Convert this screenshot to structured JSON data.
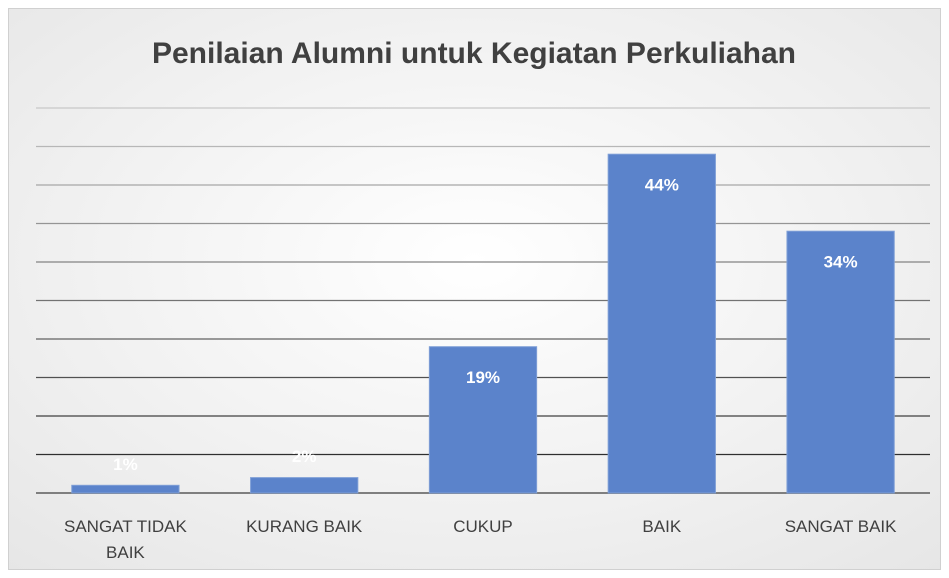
{
  "chart_data": {
    "type": "bar",
    "title": "Penilaian Alumni untuk Kegiatan Perkuliahan",
    "categories": [
      "SANGAT TIDAK BAIK",
      "KURANG BAIK",
      "CUKUP",
      "BAIK",
      "SANGAT BAIK"
    ],
    "values": [
      1,
      2,
      19,
      44,
      34
    ],
    "value_labels": [
      "1%",
      "2%",
      "19%",
      "44%",
      "34%"
    ],
    "color": "#5b83cb",
    "ylim": [
      0,
      50
    ],
    "yticks": [
      0,
      5,
      10,
      15,
      20,
      25,
      30,
      35,
      40,
      45,
      50
    ],
    "grid": true
  }
}
